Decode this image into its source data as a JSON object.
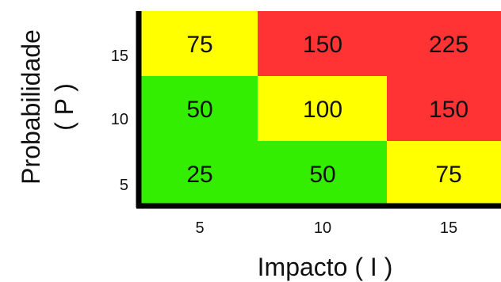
{
  "chart_data": {
    "type": "heatmap",
    "title": "",
    "xlabel": "Impacto ( I )",
    "ylabel_line1": "Probabilidade",
    "ylabel_line2": "( P )",
    "x_categories": [
      "5",
      "10",
      "15"
    ],
    "y_categories": [
      "15",
      "10",
      "5"
    ],
    "values": [
      [
        75,
        150,
        225
      ],
      [
        50,
        100,
        150
      ],
      [
        25,
        50,
        75
      ]
    ],
    "cell_colors": [
      [
        "#ffff00",
        "#ff3333",
        "#ff3333"
      ],
      [
        "#33ee00",
        "#ffff00",
        "#ff3333"
      ],
      [
        "#33ee00",
        "#33ee00",
        "#ffff00"
      ]
    ],
    "axis_color": "#000000",
    "grid": false,
    "legend": "none"
  }
}
